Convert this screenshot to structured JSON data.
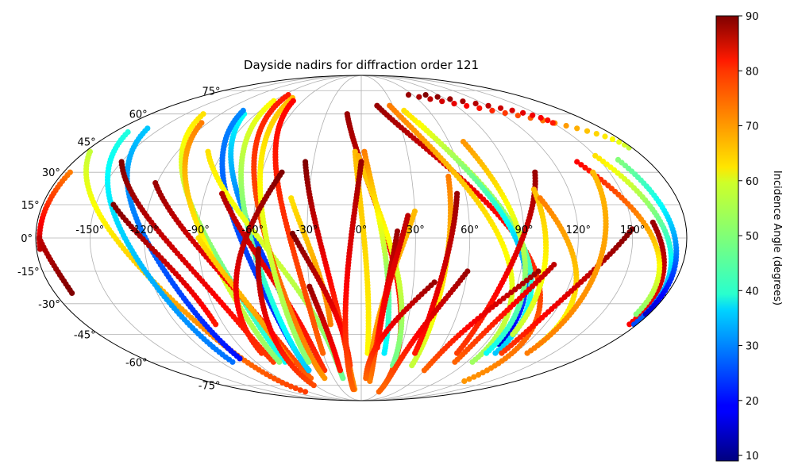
{
  "chart_data": {
    "type": "scatter",
    "projection": "mollweide",
    "title": "Dayside nadirs for diffraction order 121",
    "x_ticks": [
      "-150°",
      "-120°",
      "-90°",
      "-60°",
      "-30°",
      "0°",
      "30°",
      "60°",
      "90°",
      "120°",
      "150°"
    ],
    "y_ticks": [
      "75°",
      "60°",
      "45°",
      "30°",
      "15°",
      "0°",
      "-15°",
      "-30°",
      "-45°",
      "-60°",
      "-75°"
    ],
    "grid": true,
    "colorbar": {
      "label": "Incidence Angle (degrees)",
      "colormap": "jet",
      "min": 9,
      "max": 90,
      "ticks": [
        "10",
        "20",
        "30",
        "40",
        "50",
        "60",
        "70",
        "80",
        "90"
      ]
    },
    "tracks": [
      {
        "lat_start": 40,
        "lat_end": -80,
        "lon_start": -177,
        "lon_end": -95,
        "inc_start": 55,
        "inc_end": 75
      },
      {
        "lat_start": 50,
        "lat_end": -60,
        "lon_start": -170,
        "lon_end": -110,
        "inc_start": 42,
        "inc_end": 28
      },
      {
        "lat_start": 52,
        "lat_end": -58,
        "lon_start": -160,
        "lon_end": -100,
        "inc_start": 35,
        "inc_end": 20
      },
      {
        "lat_start": 30,
        "lat_end": -5,
        "lon_start": -176,
        "lon_end": -178,
        "inc_start": 70,
        "inc_end": 85
      },
      {
        "lat_start": 0,
        "lat_end": -25,
        "lon_start": -178,
        "lon_end": -170,
        "inc_start": 85,
        "inc_end": 90
      },
      {
        "lat_start": 35,
        "lat_end": -60,
        "lon_start": -150,
        "lon_end": -75,
        "inc_start": 90,
        "inc_end": 75
      },
      {
        "lat_start": 15,
        "lat_end": -40,
        "lon_start": -140,
        "lon_end": -95,
        "inc_start": 90,
        "inc_end": 78
      },
      {
        "lat_start": 60,
        "lat_end": -60,
        "lon_start": -135,
        "lon_end": -65,
        "inc_start": 62,
        "inc_end": 40
      },
      {
        "lat_start": 55,
        "lat_end": -60,
        "lon_start": -125,
        "lon_end": -70,
        "inc_start": 70,
        "inc_end": 50
      },
      {
        "lat_start": 25,
        "lat_end": -70,
        "lon_start": -121,
        "lon_end": -55,
        "inc_start": 88,
        "inc_end": 72
      },
      {
        "lat_start": 60,
        "lat_end": -65,
        "lon_start": -100,
        "lon_end": -40,
        "inc_start": 40,
        "inc_end": 10
      },
      {
        "lat_start": 62,
        "lat_end": -65,
        "lon_start": -105,
        "lon_end": -50,
        "inc_start": 30,
        "inc_end": 20
      },
      {
        "lat_start": 68,
        "lat_end": -65,
        "lon_start": -90,
        "lon_end": -50,
        "inc_start": 60,
        "inc_end": 35
      },
      {
        "lat_start": 40,
        "lat_end": -70,
        "lon_start": -100,
        "lon_end": -20,
        "inc_start": 62,
        "inc_end": 48
      },
      {
        "lat_start": 20,
        "lat_end": -65,
        "lon_start": -80,
        "lon_end": -35,
        "inc_start": 86,
        "inc_end": 76
      },
      {
        "lat_start": 0,
        "lat_end": -60,
        "lon_start": -90,
        "lon_end": -60,
        "inc_start": 62,
        "inc_end": 70
      },
      {
        "lat_start": 72,
        "lat_end": -70,
        "lon_start": -85,
        "lon_end": -40,
        "inc_start": 78,
        "inc_end": 68
      },
      {
        "lat_start": 70,
        "lat_end": -60,
        "lon_start": -75,
        "lon_end": -45,
        "inc_start": 65,
        "inc_end": 50
      },
      {
        "lat_start": 68,
        "lat_end": -55,
        "lon_start": -70,
        "lon_end": -30,
        "inc_start": 80,
        "inc_end": 72
      },
      {
        "lat_start": 30,
        "lat_end": -55,
        "lon_start": -48,
        "lon_end": -78,
        "inc_start": 90,
        "inc_end": 76
      },
      {
        "lat_start": -5,
        "lat_end": -75,
        "lon_start": -57,
        "lon_end": -62,
        "inc_start": 88,
        "inc_end": 74
      },
      {
        "lat_start": 35,
        "lat_end": -78,
        "lon_start": -35,
        "lon_end": -10,
        "inc_start": 90,
        "inc_end": 68
      },
      {
        "lat_start": 18,
        "lat_end": -40,
        "lon_start": -40,
        "lon_end": -20,
        "inc_start": 62,
        "inc_end": 70
      },
      {
        "lat_start": 2,
        "lat_end": -62,
        "lon_start": -38,
        "lon_end": -10,
        "inc_start": 90,
        "inc_end": 75
      },
      {
        "lat_start": -22,
        "lat_end": -65,
        "lon_start": -30,
        "lon_end": -20,
        "inc_start": 88,
        "inc_end": 78
      },
      {
        "lat_start": 60,
        "lat_end": -80,
        "lon_start": -12,
        "lon_end": 30,
        "inc_start": 88,
        "inc_end": 72
      },
      {
        "lat_start": 40,
        "lat_end": -55,
        "lon_start": -4,
        "lon_end": 5,
        "inc_start": 65,
        "inc_end": 60
      },
      {
        "lat_start": 38,
        "lat_end": -62,
        "lon_start": -2,
        "lon_end": 28,
        "inc_start": 66,
        "inc_end": 48
      },
      {
        "lat_start": 40,
        "lat_end": -55,
        "lon_start": 2,
        "lon_end": 18,
        "inc_start": 70,
        "inc_end": 38
      },
      {
        "lat_start": 35,
        "lat_end": -78,
        "lon_start": 0,
        "lon_end": -12,
        "inc_start": 88,
        "inc_end": 72
      },
      {
        "lat_start": 12,
        "lat_end": -62,
        "lon_start": 30,
        "lon_end": 8,
        "inc_start": 65,
        "inc_end": 68
      },
      {
        "lat_start": 3,
        "lat_end": -72,
        "lon_start": 20,
        "lon_end": 10,
        "inc_start": 88,
        "inc_end": 70
      },
      {
        "lat_start": 10,
        "lat_end": -52,
        "lon_start": 26,
        "lon_end": 12,
        "inc_start": 85,
        "inc_end": 78
      },
      {
        "lat_start": -20,
        "lat_end": -70,
        "lon_start": 42,
        "lon_end": 5,
        "inc_start": 88,
        "inc_end": 72
      },
      {
        "lat_start": 65,
        "lat_end": -72,
        "lon_start": 15,
        "lon_end": 120,
        "inc_start": 88,
        "inc_end": 68
      },
      {
        "lat_start": 65,
        "lat_end": -60,
        "lon_start": 27,
        "lon_end": 95,
        "inc_start": 70,
        "inc_end": 52
      },
      {
        "lat_start": 62,
        "lat_end": -55,
        "lon_start": 38,
        "lon_end": 105,
        "inc_start": 62,
        "inc_end": 35
      },
      {
        "lat_start": 55,
        "lat_end": -50,
        "lon_start": 45,
        "lon_end": 100,
        "inc_start": 60,
        "inc_end": 15
      },
      {
        "lat_start": 28,
        "lat_end": -62,
        "lon_start": 52,
        "lon_end": 45,
        "inc_start": 70,
        "inc_end": 55
      },
      {
        "lat_start": 20,
        "lat_end": -55,
        "lon_start": 55,
        "lon_end": 42,
        "inc_start": 88,
        "inc_end": 78
      },
      {
        "lat_start": -15,
        "lat_end": -75,
        "lon_start": 60,
        "lon_end": 30,
        "inc_start": 88,
        "inc_end": 72
      },
      {
        "lat_start": 45,
        "lat_end": -55,
        "lon_start": 70,
        "lon_end": 98,
        "inc_start": 68,
        "inc_end": 40
      },
      {
        "lat_start": 30,
        "lat_end": -55,
        "lon_start": 105,
        "lon_end": 75,
        "inc_start": 88,
        "inc_end": 75
      },
      {
        "lat_start": 22,
        "lat_end": -45,
        "lon_start": 100,
        "lon_end": 104,
        "inc_start": 65,
        "inc_end": 55
      },
      {
        "lat_start": 18,
        "lat_end": -50,
        "lon_start": 102,
        "lon_end": 130,
        "inc_start": 70,
        "inc_end": 58
      },
      {
        "lat_start": -12,
        "lat_end": -60,
        "lon_start": 108,
        "lon_end": 80,
        "inc_start": 85,
        "inc_end": 72
      },
      {
        "lat_start": -15,
        "lat_end": -65,
        "lon_start": 100,
        "lon_end": 60,
        "inc_start": 88,
        "inc_end": 72
      },
      {
        "lat_start": 4,
        "lat_end": -55,
        "lon_start": 150,
        "lon_end": 110,
        "inc_start": 90,
        "inc_end": 75
      },
      {
        "lat_start": 7,
        "lat_end": -40,
        "lon_start": 162,
        "lon_end": 175,
        "inc_start": 88,
        "inc_end": 80
      },
      {
        "lat_start": 35,
        "lat_end": -35,
        "lon_start": 135,
        "lon_end": 172,
        "inc_start": 80,
        "inc_end": 50
      },
      {
        "lat_start": 38,
        "lat_end": -40,
        "lon_start": 150,
        "lon_end": 178,
        "inc_start": 62,
        "inc_end": 25
      },
      {
        "lat_start": 36,
        "lat_end": -35,
        "lon_start": 162,
        "lon_end": 178,
        "inc_start": 50,
        "inc_end": 15
      },
      {
        "lat_start": 30,
        "lat_end": -55,
        "lon_start": 140,
        "lon_end": 130,
        "inc_start": 65,
        "inc_end": 70
      },
      {
        "lat_start": 72,
        "lat_end": 42,
        "lon_start": 55,
        "lon_end": 178,
        "inc_start": 88,
        "inc_end": 55
      },
      {
        "lat_start": 72,
        "lat_end": 55,
        "lon_start": 75,
        "lon_end": 150,
        "inc_start": 90,
        "inc_end": 78
      }
    ]
  }
}
